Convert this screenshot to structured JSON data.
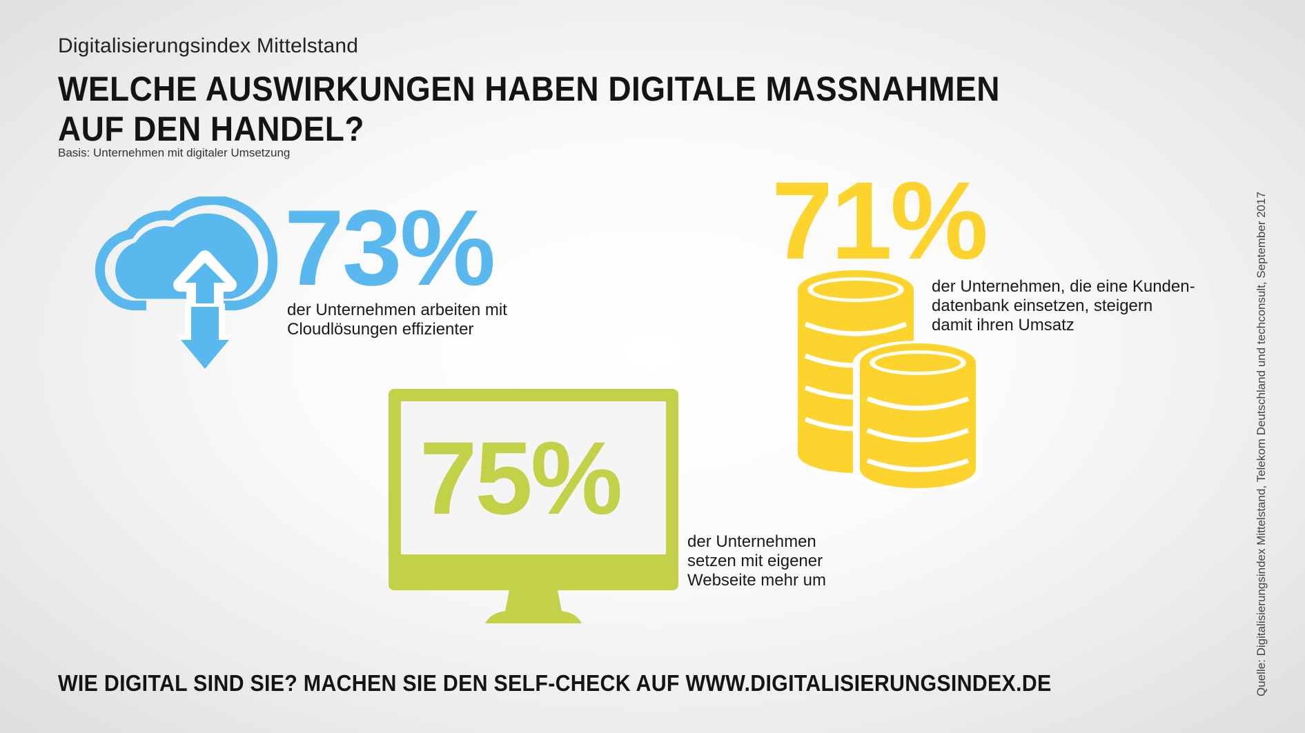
{
  "header": {
    "kicker": "Digitalisierungsindex Mittelstand",
    "headline_line1": "WELCHE AUSWIRKUNGEN HABEN DIGITALE MASSNAHMEN",
    "headline_line2": "AUF DEN HANDEL?",
    "basis": "Basis: Unternehmen mit digitaler Umsetzung"
  },
  "stats": {
    "cloud": {
      "value": "73%",
      "line1": "der Unternehmen arbeiten mit",
      "line2": "Cloudlösungen effizienter",
      "color": "#59b8ee",
      "icon": "cloud-upload-download-icon"
    },
    "coins": {
      "value": "71%",
      "line1": "der Unternehmen, die eine Kunden-",
      "line2": "datenbank einsetzen, steigern",
      "line3": "damit ihren Umsatz",
      "color": "#fcd42d",
      "icon": "coin-stacks-icon"
    },
    "monitor": {
      "value": "75%",
      "line1": "der Unternehmen",
      "line2": "setzen mit eigener",
      "line3": "Webseite mehr um",
      "color": "#c2d147",
      "icon": "monitor-icon"
    }
  },
  "footer": {
    "cta": "WIE DIGITAL SIND SIE? MACHEN SIE DEN SELF-CHECK AUF WWW.DIGITALISIERUNGSINDEX.DE",
    "source": "Quelle: Digitalisierungsindex Mittelstand, Telekom Deutschland und techconsult, September 2017"
  }
}
